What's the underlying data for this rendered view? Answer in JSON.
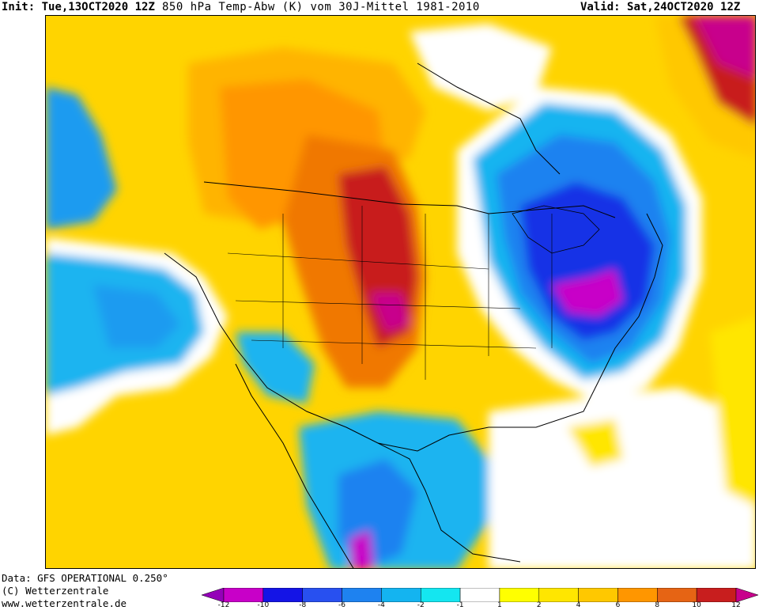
{
  "header": {
    "init_label": "Init:",
    "init_value": "Tue,13OCT2020 12Z",
    "product": "850 hPa Temp-Abw (K) vom 30J-Mittel 1981-2010",
    "valid_label": "Valid:",
    "valid_value": "Sat,24OCT2020 12Z"
  },
  "footer": {
    "data_source": "Data: GFS OPERATIONAL 0.250°",
    "copyright": "(C) Wetterzentrale",
    "website": "www.wetterzentrale.de"
  },
  "legend": {
    "ticks": [
      "-12",
      "-10",
      "-8",
      "-6",
      "-4",
      "-2",
      "-1",
      "1",
      "2",
      "4",
      "6",
      "8",
      "10",
      "12"
    ],
    "colors": [
      "#9400b8",
      "#c800c8",
      "#1414e6",
      "#2850f0",
      "#1e82f0",
      "#14b4f0",
      "#14e6f0",
      "#ffffff",
      "#ffff00",
      "#ffe600",
      "#ffc800",
      "#ff9600",
      "#e66414",
      "#c81e1e",
      "#c8008c"
    ]
  },
  "map": {
    "region": "North America",
    "colors": {
      "anomaly_warm_strong": "#c81e1e",
      "anomaly_warm": "#e66414",
      "anomaly_mild": "#ffc800",
      "anomaly_cold": "#1e82f0",
      "anomaly_cold_strong": "#1414e6",
      "anomaly_extreme_cold": "#c800c8"
    }
  }
}
